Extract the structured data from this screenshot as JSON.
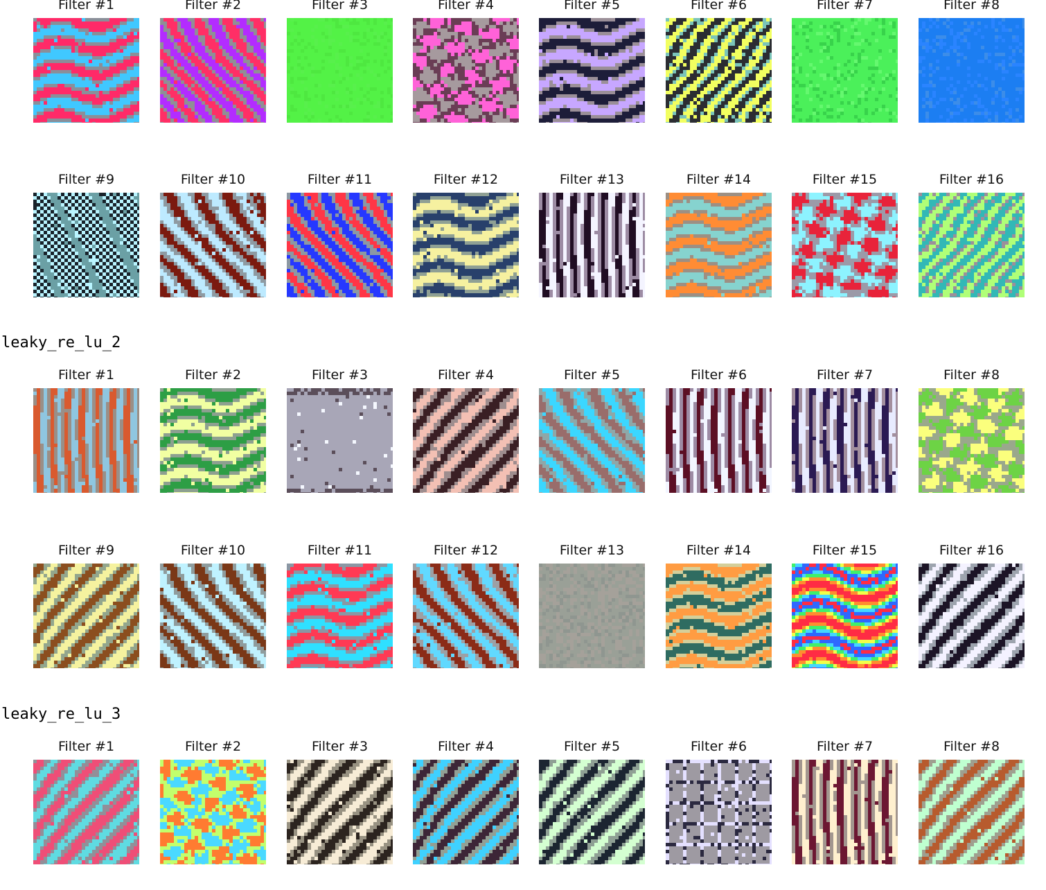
{
  "sections": [
    {
      "title": "",
      "rows": [
        {
          "filters": [
            {
              "label": "Filter #1",
              "pattern": "wave-h",
              "colors": [
                "#ff2a68",
                "#40c8ff",
                "#8a8f99"
              ]
            },
            {
              "label": "Filter #2",
              "pattern": "diag-r",
              "colors": [
                "#ff2f66",
                "#b32cff",
                "#8f8f96"
              ]
            },
            {
              "label": "Filter #3",
              "pattern": "solid",
              "colors": [
                "#53f246",
                "#4ee840",
                "#58f04c"
              ]
            },
            {
              "label": "Filter #4",
              "pattern": "noise",
              "colors": [
                "#a69a9e",
                "#ff62d8",
                "#6a3d55"
              ]
            },
            {
              "label": "Filter #5",
              "pattern": "wave-h",
              "colors": [
                "#1d1d39",
                "#c7a7ff",
                "#9b8f98"
              ]
            },
            {
              "label": "Filter #6",
              "pattern": "diag-dense",
              "colors": [
                "#f2ff60",
                "#2b2d32",
                "#7bc4ba"
              ]
            },
            {
              "label": "Filter #7",
              "pattern": "solid",
              "colors": [
                "#4bf05a",
                "#38d34b",
                "#65f86f"
              ]
            },
            {
              "label": "Filter #8",
              "pattern": "solid",
              "colors": [
                "#1c7ef2",
                "#2a84ff",
                "#3c8de9"
              ]
            }
          ]
        },
        {
          "filters": [
            {
              "label": "Filter #9",
              "pattern": "checker",
              "colors": [
                "#18222a",
                "#b9f4ff",
                "#6ba0a5"
              ]
            },
            {
              "label": "Filter #10",
              "pattern": "diag-r",
              "colors": [
                "#7b1a0f",
                "#bdeaff",
                "#8e9aa2"
              ]
            },
            {
              "label": "Filter #11",
              "pattern": "diag-r",
              "colors": [
                "#2638ff",
                "#ff3646",
                "#8c98a3"
              ]
            },
            {
              "label": "Filter #12",
              "pattern": "wave-h",
              "colors": [
                "#28406b",
                "#f6f1a0",
                "#8fa094"
              ]
            },
            {
              "label": "Filter #13",
              "pattern": "vert",
              "colors": [
                "#200d23",
                "#f4f4ff",
                "#9d8ca4"
              ]
            },
            {
              "label": "Filter #14",
              "pattern": "wave-h",
              "colors": [
                "#ff8c34",
                "#86d3cf",
                "#9d8f83"
              ]
            },
            {
              "label": "Filter #15",
              "pattern": "noise",
              "colors": [
                "#e8233a",
                "#8df3ff",
                "#9c9aa8"
              ]
            },
            {
              "label": "Filter #16",
              "pattern": "diag-dense",
              "colors": [
                "#32b8b6",
                "#b0ff78",
                "#9c8f9b"
              ]
            }
          ]
        }
      ]
    },
    {
      "title": "leaky_re_lu_2",
      "rows": [
        {
          "filters": [
            {
              "label": "Filter #1",
              "pattern": "vert",
              "colors": [
                "#d95a2f",
                "#8fc6e0",
                "#9a8f87"
              ]
            },
            {
              "label": "Filter #2",
              "pattern": "wave-h",
              "colors": [
                "#2d9e45",
                "#f1ffa2",
                "#8da090"
              ]
            },
            {
              "label": "Filter #3",
              "pattern": "soft",
              "colors": [
                "#a8a6b7",
                "#f5f8ff",
                "#5b4e5a"
              ]
            },
            {
              "label": "Filter #4",
              "pattern": "diag-l",
              "colors": [
                "#3a1f24",
                "#f3c0b4",
                "#9e8d8e"
              ]
            },
            {
              "label": "Filter #5",
              "pattern": "diag-r",
              "colors": [
                "#3bd7ff",
                "#996d6b",
                "#8fa7a8"
              ]
            },
            {
              "label": "Filter #6",
              "pattern": "vert",
              "colors": [
                "#5c0f24",
                "#f2f5ff",
                "#9d8ba4"
              ]
            },
            {
              "label": "Filter #7",
              "pattern": "vert",
              "colors": [
                "#2b1a53",
                "#e8ebff",
                "#a38f9e"
              ]
            },
            {
              "label": "Filter #8",
              "pattern": "noise",
              "colors": [
                "#6dd345",
                "#fbff7d",
                "#9aa88c"
              ]
            }
          ]
        },
        {
          "filters": [
            {
              "label": "Filter #9",
              "pattern": "diag-l",
              "colors": [
                "#8b4e1f",
                "#f5f29f",
                "#93a68d"
              ]
            },
            {
              "label": "Filter #10",
              "pattern": "diag-r",
              "colors": [
                "#7a3817",
                "#bff2ff",
                "#8f9c9d"
              ]
            },
            {
              "label": "Filter #11",
              "pattern": "wave-h",
              "colors": [
                "#ff3a54",
                "#2fe0ff",
                "#8b97a4"
              ]
            },
            {
              "label": "Filter #12",
              "pattern": "diag-r",
              "colors": [
                "#61d9ff",
                "#8b2b17",
                "#9da0a5"
              ]
            },
            {
              "label": "Filter #13",
              "pattern": "flat-gray",
              "colors": [
                "#9aa097",
                "#a5a19a",
                "#8f9690"
              ]
            },
            {
              "label": "Filter #14",
              "pattern": "wave-h",
              "colors": [
                "#ff9c42",
                "#2f6c61",
                "#d4cf9a"
              ]
            },
            {
              "label": "Filter #15",
              "pattern": "rainbow",
              "colors": [
                "#ff2c44",
                "#3ff06b",
                "#2f68ff"
              ]
            },
            {
              "label": "Filter #16",
              "pattern": "diag-l",
              "colors": [
                "#1c1426",
                "#f4f2ff",
                "#9da4ae"
              ]
            }
          ]
        }
      ]
    },
    {
      "title": "leaky_re_lu_3",
      "rows": [
        {
          "filters": [
            {
              "label": "Filter #1",
              "pattern": "diag-l",
              "colors": [
                "#ef4e77",
                "#5fdbe1",
                "#928f98"
              ]
            },
            {
              "label": "Filter #2",
              "pattern": "noise",
              "colors": [
                "#ff7b31",
                "#4ad9ff",
                "#c2ff6c"
              ]
            },
            {
              "label": "Filter #3",
              "pattern": "diag-l",
              "colors": [
                "#2c241f",
                "#f7ecd6",
                "#989282"
              ]
            },
            {
              "label": "Filter #4",
              "pattern": "diag-l",
              "colors": [
                "#3fd1ff",
                "#3d2637",
                "#92a095"
              ]
            },
            {
              "label": "Filter #5",
              "pattern": "diag-l",
              "colors": [
                "#1c2531",
                "#d4ffd1",
                "#8fa094"
              ]
            },
            {
              "label": "Filter #6",
              "pattern": "grid",
              "colors": [
                "#2b2940",
                "#e4e0ff",
                "#9e9aa2"
              ]
            },
            {
              "label": "Filter #7",
              "pattern": "vert",
              "colors": [
                "#6c1732",
                "#fff0cf",
                "#a2968f"
              ]
            },
            {
              "label": "Filter #8",
              "pattern": "diag-l",
              "colors": [
                "#b75b2e",
                "#bfffd0",
                "#9f9f8f"
              ]
            }
          ]
        }
      ]
    }
  ]
}
